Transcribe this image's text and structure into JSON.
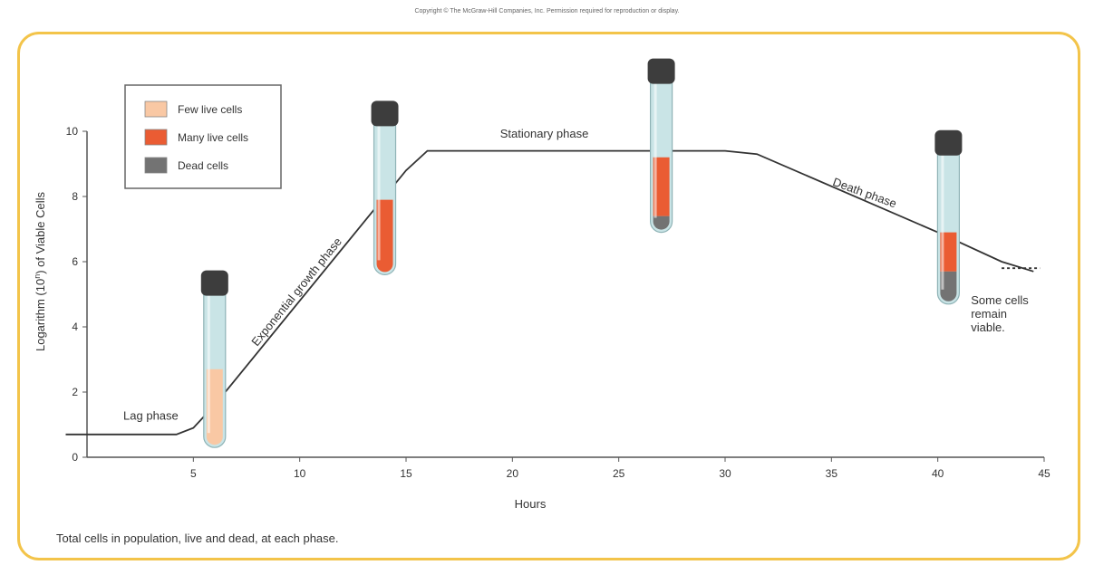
{
  "copyright": "Copyright © The McGraw-Hill Companies, Inc. Permission required for reproduction or display.",
  "caption": "Total cells in population, live and dead, at each phase.",
  "colors": {
    "panel_border": "#f3c44a",
    "few_live": "#f9c8a4",
    "many_live": "#ea5c33",
    "dead": "#737373",
    "tube_glass": "#c9e4e6",
    "tube_cap": "#3d3d3d",
    "curve": "#333333"
  },
  "chart_data": {
    "type": "line",
    "title": "",
    "xlabel": "Hours",
    "ylabel": "Logarithm (10^n) of Viable Cells",
    "xlim": [
      0,
      45
    ],
    "ylim": [
      0,
      10
    ],
    "x_ticks": [
      5,
      10,
      15,
      20,
      25,
      30,
      35,
      40,
      45
    ],
    "y_ticks": [
      0,
      2,
      4,
      6,
      8,
      10
    ],
    "grid": false,
    "legend_position": "top-left",
    "legend": [
      {
        "label": "Few live cells",
        "color": "#f9c8a4"
      },
      {
        "label": "Many live cells",
        "color": "#ea5c33"
      },
      {
        "label": "Dead cells",
        "color": "#737373"
      }
    ],
    "series": [
      {
        "x": [
          -1,
          4.2,
          5,
          6,
          15,
          16,
          30,
          31.5,
          40,
          43,
          44.5
        ],
        "y": [
          0.7,
          0.7,
          0.9,
          1.6,
          8.8,
          9.4,
          9.4,
          9.3,
          6.9,
          6.0,
          5.7
        ]
      }
    ],
    "dashed_tail": {
      "x": [
        43,
        44.8
      ],
      "y": [
        5.8,
        5.8
      ]
    },
    "phases": [
      {
        "label": "Lag phase",
        "x": 3,
        "y": 1.15,
        "angle": 0
      },
      {
        "label": "Exponential growth phase",
        "x": 10,
        "y": 5.0,
        "angle": -51
      },
      {
        "label": "Stationary phase",
        "x": 21.5,
        "y": 9.8,
        "angle": 0
      },
      {
        "label": "Death phase",
        "x": 36.5,
        "y": 8.0,
        "angle": 20
      }
    ],
    "annotation": {
      "lines": [
        "Some cells",
        "remain",
        "viable."
      ],
      "x": 44.2,
      "y": 4.8
    },
    "tubes": [
      {
        "x": 6,
        "top": 5.4,
        "bottom": 0.3,
        "segments": [
          {
            "kind": "few_live",
            "from": 0.4,
            "to": 2.7
          }
        ]
      },
      {
        "x": 14,
        "top": 10.6,
        "bottom": 5.6,
        "segments": [
          {
            "kind": "many_live",
            "from": 5.7,
            "to": 7.9
          }
        ]
      },
      {
        "x": 27,
        "top": 11.9,
        "bottom": 6.9,
        "segments": [
          {
            "kind": "dead",
            "from": 7.0,
            "to": 7.4
          },
          {
            "kind": "many_live",
            "from": 7.4,
            "to": 9.2
          }
        ]
      },
      {
        "x": 40.5,
        "top": 9.7,
        "bottom": 4.7,
        "segments": [
          {
            "kind": "dead",
            "from": 4.8,
            "to": 5.7
          },
          {
            "kind": "many_live",
            "from": 5.7,
            "to": 6.9
          }
        ]
      }
    ]
  }
}
